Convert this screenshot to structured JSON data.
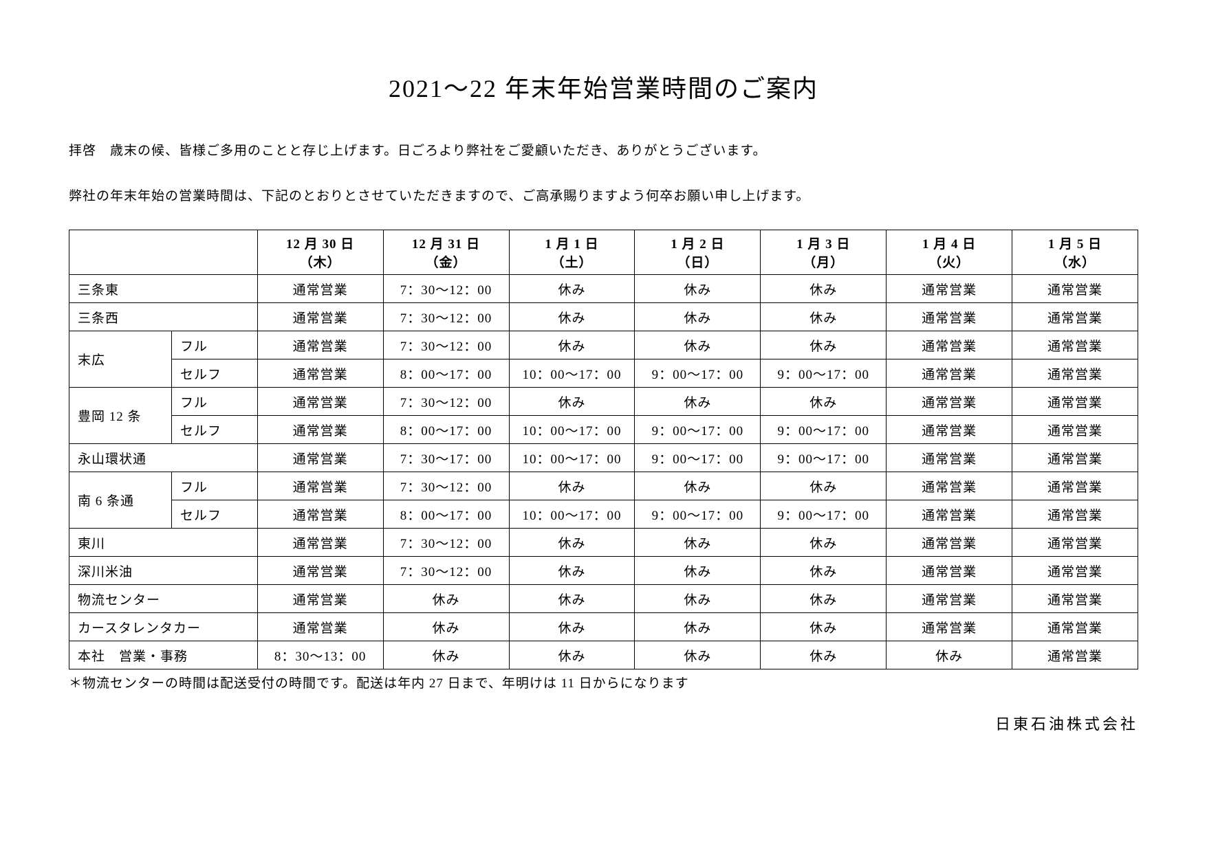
{
  "title": "2021～22 年末年始営業時間のご案内",
  "paragraph1": "拝啓　歳末の候、皆様ご多用のことと存じ上げます。日ごろより弊社をご愛顧いただき、ありがとうございます。",
  "paragraph2": "弊社の年末年始の営業時間は、下記のとおりとさせていただきますので、ご高承賜りますよう何卒お願い申し上げます。",
  "headers": {
    "c0": {
      "date": "12 月 30 日",
      "wday": "（木）"
    },
    "c1": {
      "date": "12 月 31 日",
      "wday": "（金）"
    },
    "c2": {
      "date": "1 月 1 日",
      "wday": "（土）"
    },
    "c3": {
      "date": "1 月 2 日",
      "wday": "（日）"
    },
    "c4": {
      "date": "1 月 3 日",
      "wday": "（月）"
    },
    "c5": {
      "date": "1 月 4 日",
      "wday": "（火）"
    },
    "c6": {
      "date": "1 月 5 日",
      "wday": "（水）"
    }
  },
  "rows": {
    "r0": {
      "loc": "三条東",
      "sub": "",
      "d0": "通常営業",
      "d1": "7：30～12：00",
      "d2": "休み",
      "d3": "休み",
      "d4": "休み",
      "d5": "通常営業",
      "d6": "通常営業"
    },
    "r1": {
      "loc": "三条西",
      "sub": "",
      "d0": "通常営業",
      "d1": "7：30～12：00",
      "d2": "休み",
      "d3": "休み",
      "d4": "休み",
      "d5": "通常営業",
      "d6": "通常営業"
    },
    "r2": {
      "loc": "末広",
      "sub": "フル",
      "d0": "通常営業",
      "d1": "7：30～12：00",
      "d2": "休み",
      "d3": "休み",
      "d4": "休み",
      "d5": "通常営業",
      "d6": "通常営業"
    },
    "r3": {
      "sub": "セルフ",
      "d0": "通常営業",
      "d1": "8：00～17：00",
      "d2": "10：00～17：00",
      "d3": "9：00～17：00",
      "d4": "9：00～17：00",
      "d5": "通常営業",
      "d6": "通常営業"
    },
    "r4": {
      "loc": "豊岡 12 条",
      "sub": "フル",
      "d0": "通常営業",
      "d1": "7：30～12：00",
      "d2": "休み",
      "d3": "休み",
      "d4": "休み",
      "d5": "通常営業",
      "d6": "通常営業"
    },
    "r5": {
      "sub": "セルフ",
      "d0": "通常営業",
      "d1": "8：00～17：00",
      "d2": "10：00～17：00",
      "d3": "9：00～17：00",
      "d4": "9：00～17：00",
      "d5": "通常営業",
      "d6": "通常営業"
    },
    "r6": {
      "loc": "永山環状通",
      "sub": "",
      "d0": "通常営業",
      "d1": "7：30～17：00",
      "d2": "10：00～17：00",
      "d3": "9：00～17：00",
      "d4": "9：00～17：00",
      "d5": "通常営業",
      "d6": "通常営業"
    },
    "r7": {
      "loc": "南 6 条通",
      "sub": "フル",
      "d0": "通常営業",
      "d1": "7：30～12：00",
      "d2": "休み",
      "d3": "休み",
      "d4": "休み",
      "d5": "通常営業",
      "d6": "通常営業"
    },
    "r8": {
      "sub": "セルフ",
      "d0": "通常営業",
      "d1": "8：00～17：00",
      "d2": "10：00～17：00",
      "d3": "9：00～17：00",
      "d4": "9：00～17：00",
      "d5": "通常営業",
      "d6": "通常営業"
    },
    "r9": {
      "loc": "東川",
      "sub": "",
      "d0": "通常営業",
      "d1": "7：30～12：00",
      "d2": "休み",
      "d3": "休み",
      "d4": "休み",
      "d5": "通常営業",
      "d6": "通常営業"
    },
    "r10": {
      "loc": "深川米油",
      "sub": "",
      "d0": "通常営業",
      "d1": "7：30～12：00",
      "d2": "休み",
      "d3": "休み",
      "d4": "休み",
      "d5": "通常営業",
      "d6": "通常営業"
    },
    "r11": {
      "loc": "物流センター",
      "sub": "",
      "d0": "通常営業",
      "d1": "休み",
      "d2": "休み",
      "d3": "休み",
      "d4": "休み",
      "d5": "通常営業",
      "d6": "通常営業"
    },
    "r12": {
      "loc": "カースタレンタカー",
      "sub": "",
      "d0": "通常営業",
      "d1": "休み",
      "d2": "休み",
      "d3": "休み",
      "d4": "休み",
      "d5": "通常営業",
      "d6": "通常営業"
    },
    "r13": {
      "loc": "本社　営業・事務",
      "sub": "",
      "d0": "8：30～13：00",
      "d1": "休み",
      "d2": "休み",
      "d3": "休み",
      "d4": "休み",
      "d5": "休み",
      "d6": "通常営業"
    }
  },
  "footnote": "＊物流センターの時間は配送受付の時間です。配送は年内 27 日まで、年明けは 11 日からになります",
  "company": "日東石油株式会社",
  "style": {
    "background_color": "#ffffff",
    "text_color": "#000000",
    "border_color": "#000000",
    "title_fontsize": 36,
    "body_fontsize": 19,
    "company_fontsize": 22,
    "font_family": "serif-mincho"
  }
}
